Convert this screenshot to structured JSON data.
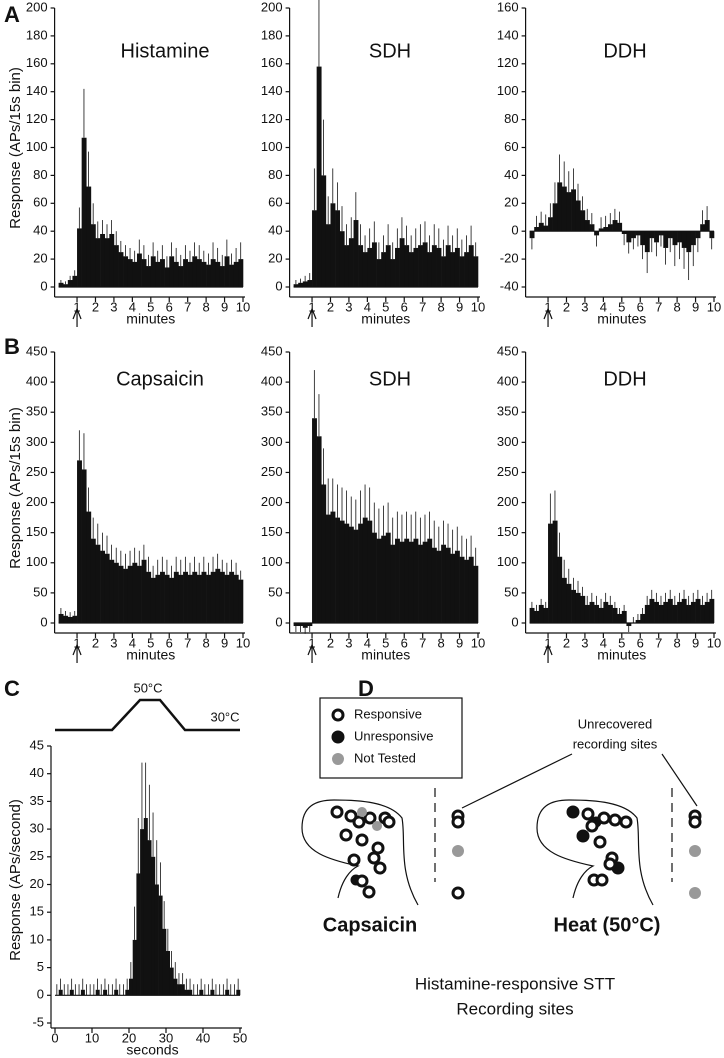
{
  "panel_labels": [
    "A",
    "B",
    "C",
    "D"
  ],
  "chart_data": [
    {
      "type": "bar",
      "title": "Histamine",
      "ylabel": "Response (APs/15s bin)",
      "xlabel": "minutes",
      "color": "#111111",
      "stimulus_at": 1,
      "xlim": [
        0,
        10
      ],
      "xticks": [
        1,
        2,
        3,
        4,
        5,
        6,
        7,
        8,
        9,
        10
      ],
      "ylim": [
        0,
        200
      ],
      "yticks": [
        0,
        20,
        40,
        60,
        80,
        100,
        120,
        140,
        160,
        180,
        200
      ],
      "values": [
        3,
        2,
        5,
        8,
        42,
        107,
        72,
        45,
        35,
        38,
        35,
        38,
        30,
        25,
        22,
        20,
        18,
        24,
        20,
        15,
        22,
        18,
        20,
        14,
        22,
        18,
        15,
        20,
        18,
        22,
        20,
        18,
        16,
        20,
        18,
        15,
        22,
        16,
        18,
        20
      ],
      "errors": [
        2,
        2,
        3,
        4,
        15,
        35,
        25,
        15,
        12,
        10,
        10,
        10,
        10,
        8,
        8,
        8,
        8,
        10,
        10,
        8,
        10,
        8,
        10,
        8,
        10,
        10,
        8,
        10,
        8,
        10,
        10,
        8,
        8,
        12,
        10,
        8,
        12,
        8,
        10,
        12
      ]
    },
    {
      "type": "bar",
      "title": "SDH",
      "xlabel": "minutes",
      "color": "#111111",
      "stimulus_at": 1,
      "xlim": [
        0,
        10
      ],
      "xticks": [
        1,
        2,
        3,
        4,
        5,
        6,
        7,
        8,
        9,
        10
      ],
      "ylim": [
        0,
        200
      ],
      "yticks": [
        0,
        20,
        40,
        60,
        80,
        100,
        120,
        140,
        160,
        180,
        200
      ],
      "values": [
        2,
        3,
        4,
        5,
        55,
        158,
        80,
        45,
        60,
        55,
        40,
        30,
        35,
        48,
        30,
        25,
        28,
        32,
        20,
        25,
        30,
        20,
        28,
        35,
        30,
        25,
        28,
        30,
        32,
        25,
        30,
        28,
        22,
        30,
        25,
        28,
        22,
        25,
        30,
        22
      ],
      "errors": [
        3,
        3,
        4,
        5,
        30,
        50,
        40,
        20,
        25,
        20,
        18,
        15,
        15,
        20,
        15,
        12,
        14,
        15,
        12,
        12,
        15,
        12,
        14,
        15,
        14,
        12,
        14,
        15,
        15,
        12,
        15,
        14,
        12,
        14,
        12,
        14,
        12,
        12,
        14,
        10
      ]
    },
    {
      "type": "bar",
      "title": "DDH",
      "xlabel": "minutes",
      "color": "#111111",
      "stimulus_at": 1,
      "xlim": [
        0,
        10
      ],
      "xticks": [
        1,
        2,
        3,
        4,
        5,
        6,
        7,
        8,
        9,
        10
      ],
      "ylim": [
        -40,
        160
      ],
      "yticks": [
        -40,
        -20,
        0,
        20,
        40,
        60,
        80,
        100,
        120,
        140,
        160
      ],
      "values": [
        -5,
        3,
        6,
        4,
        10,
        20,
        35,
        32,
        28,
        30,
        22,
        15,
        8,
        5,
        -3,
        2,
        3,
        5,
        8,
        6,
        -2,
        -8,
        -5,
        -3,
        -10,
        -15,
        -5,
        -8,
        -3,
        -12,
        -5,
        -10,
        -8,
        -12,
        -15,
        -10,
        -5,
        5,
        8,
        -5
      ],
      "errors": [
        8,
        8,
        8,
        8,
        10,
        15,
        20,
        18,
        15,
        15,
        12,
        10,
        8,
        8,
        8,
        8,
        8,
        8,
        8,
        8,
        8,
        8,
        8,
        8,
        10,
        15,
        10,
        10,
        8,
        12,
        10,
        15,
        12,
        15,
        20,
        15,
        10,
        10,
        10,
        8
      ]
    },
    {
      "type": "bar",
      "title": "Capsaicin",
      "ylabel": "Response (APs/15s bin)",
      "xlabel": "minutes",
      "color": "#111111",
      "stimulus_at": 1,
      "xlim": [
        0,
        10
      ],
      "xticks": [
        1,
        2,
        3,
        4,
        5,
        6,
        7,
        8,
        9,
        10
      ],
      "ylim": [
        0,
        450
      ],
      "yticks": [
        0,
        50,
        100,
        150,
        200,
        250,
        300,
        350,
        400,
        450
      ],
      "values": [
        15,
        12,
        10,
        12,
        270,
        255,
        185,
        140,
        130,
        120,
        115,
        105,
        100,
        95,
        90,
        95,
        100,
        95,
        105,
        85,
        75,
        80,
        85,
        80,
        75,
        85,
        80,
        85,
        80,
        85,
        80,
        85,
        80,
        85,
        90,
        85,
        80,
        85,
        80,
        72
      ],
      "errors": [
        10,
        8,
        8,
        8,
        50,
        60,
        40,
        35,
        35,
        30,
        30,
        25,
        25,
        25,
        25,
        25,
        25,
        25,
        25,
        25,
        20,
        25,
        25,
        25,
        20,
        25,
        25,
        25,
        20,
        25,
        20,
        25,
        20,
        25,
        25,
        20,
        20,
        20,
        20,
        15
      ]
    },
    {
      "type": "bar",
      "title": "SDH",
      "xlabel": "minutes",
      "color": "#111111",
      "stimulus_at": 1,
      "xlim": [
        0,
        10
      ],
      "xticks": [
        1,
        2,
        3,
        4,
        5,
        6,
        7,
        8,
        9,
        10
      ],
      "ylim": [
        0,
        450
      ],
      "yticks": [
        0,
        50,
        100,
        150,
        200,
        250,
        300,
        350,
        400,
        450
      ],
      "values": [
        -5,
        -5,
        -8,
        -5,
        340,
        310,
        230,
        180,
        185,
        175,
        170,
        165,
        160,
        155,
        165,
        175,
        170,
        150,
        140,
        145,
        150,
        130,
        140,
        135,
        140,
        135,
        140,
        130,
        135,
        140,
        125,
        120,
        130,
        125,
        115,
        120,
        110,
        105,
        110,
        95
      ],
      "errors": [
        10,
        10,
        10,
        10,
        80,
        70,
        60,
        60,
        55,
        55,
        55,
        55,
        50,
        50,
        55,
        55,
        55,
        50,
        50,
        50,
        50,
        45,
        45,
        45,
        45,
        45,
        45,
        45,
        45,
        45,
        45,
        40,
        40,
        40,
        40,
        40,
        35,
        35,
        35,
        30
      ]
    },
    {
      "type": "bar",
      "title": "DDH",
      "xlabel": "minutes",
      "color": "#111111",
      "stimulus_at": 1,
      "xlim": [
        0,
        10
      ],
      "xticks": [
        1,
        2,
        3,
        4,
        5,
        6,
        7,
        8,
        9,
        10
      ],
      "ylim": [
        0,
        450
      ],
      "yticks": [
        0,
        50,
        100,
        150,
        200,
        250,
        300,
        350,
        400,
        450
      ],
      "values": [
        25,
        20,
        30,
        25,
        165,
        170,
        110,
        75,
        65,
        55,
        50,
        45,
        30,
        35,
        30,
        25,
        35,
        30,
        25,
        15,
        20,
        -5,
        0,
        5,
        15,
        30,
        40,
        35,
        30,
        35,
        40,
        30,
        35,
        40,
        30,
        35,
        40,
        30,
        35,
        40
      ],
      "errors": [
        10,
        10,
        10,
        10,
        50,
        50,
        40,
        30,
        25,
        20,
        20,
        15,
        15,
        15,
        15,
        15,
        15,
        15,
        10,
        10,
        10,
        10,
        10,
        10,
        10,
        15,
        15,
        15,
        15,
        15,
        15,
        15,
        15,
        15,
        15,
        15,
        15,
        15,
        15,
        15
      ]
    },
    {
      "type": "bar",
      "ylabel": "Response (APs/second)",
      "xlabel": "seconds",
      "color": "#111111",
      "annotations": [
        "50°C",
        "30°C"
      ],
      "xlim": [
        0,
        50
      ],
      "xticks": [
        0,
        10,
        20,
        30,
        40,
        50
      ],
      "ylim": [
        -5,
        45
      ],
      "yticks": [
        -5,
        0,
        5,
        10,
        15,
        20,
        25,
        30,
        35,
        40,
        45
      ],
      "values": [
        0,
        1,
        0,
        0,
        1,
        0,
        0,
        1,
        0,
        0,
        0,
        1,
        0,
        1,
        0,
        0,
        1,
        0,
        0,
        1,
        3,
        10,
        22,
        30,
        32,
        28,
        25,
        20,
        18,
        12,
        8,
        5,
        3,
        2,
        2,
        1,
        1,
        0,
        0,
        1,
        0,
        0,
        1,
        0,
        0,
        0,
        1,
        0,
        0,
        1
      ],
      "errors": [
        2,
        2,
        2,
        2,
        2,
        2,
        2,
        2,
        2,
        2,
        2,
        2,
        2,
        2,
        2,
        2,
        2,
        2,
        2,
        2,
        3,
        6,
        10,
        12,
        10,
        10,
        8,
        8,
        6,
        5,
        4,
        3,
        3,
        2,
        2,
        2,
        2,
        2,
        2,
        2,
        2,
        2,
        2,
        2,
        2,
        2,
        2,
        2,
        2,
        2
      ]
    }
  ],
  "diagram": {
    "legend": [
      "Responsive",
      "Unresponsive",
      "Not Tested"
    ],
    "note": [
      "Unrecovered",
      "recording sites"
    ],
    "sections": [
      "Capsaicin",
      "Heat (50°C)"
    ],
    "caption": [
      "Histamine-responsive STT",
      "Recording sites"
    ]
  }
}
